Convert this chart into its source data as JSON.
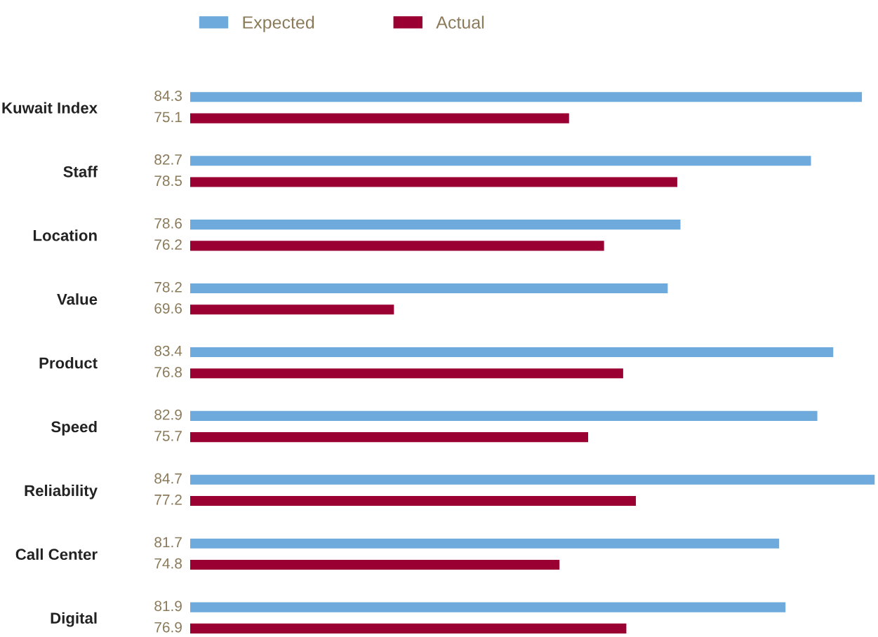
{
  "chart_data": {
    "type": "bar",
    "orientation": "horizontal",
    "categories": [
      "Kuwait Index",
      "Staff",
      "Location",
      "Value",
      "Product",
      "Speed",
      "Reliability",
      "Call Center",
      "Digital"
    ],
    "series": [
      {
        "name": "Expected",
        "color": "#6eabdc",
        "values": [
          84.3,
          82.7,
          78.6,
          78.2,
          83.4,
          82.9,
          84.7,
          81.7,
          81.9
        ]
      },
      {
        "name": "Actual",
        "color": "#9a0032",
        "values": [
          75.1,
          78.5,
          76.2,
          69.6,
          76.8,
          75.7,
          77.2,
          74.8,
          76.9
        ]
      }
    ],
    "xlim": [
      63.2,
      84.75
    ],
    "data_labels": true,
    "legend": "top",
    "tick_labels": "y",
    "grid": false
  }
}
